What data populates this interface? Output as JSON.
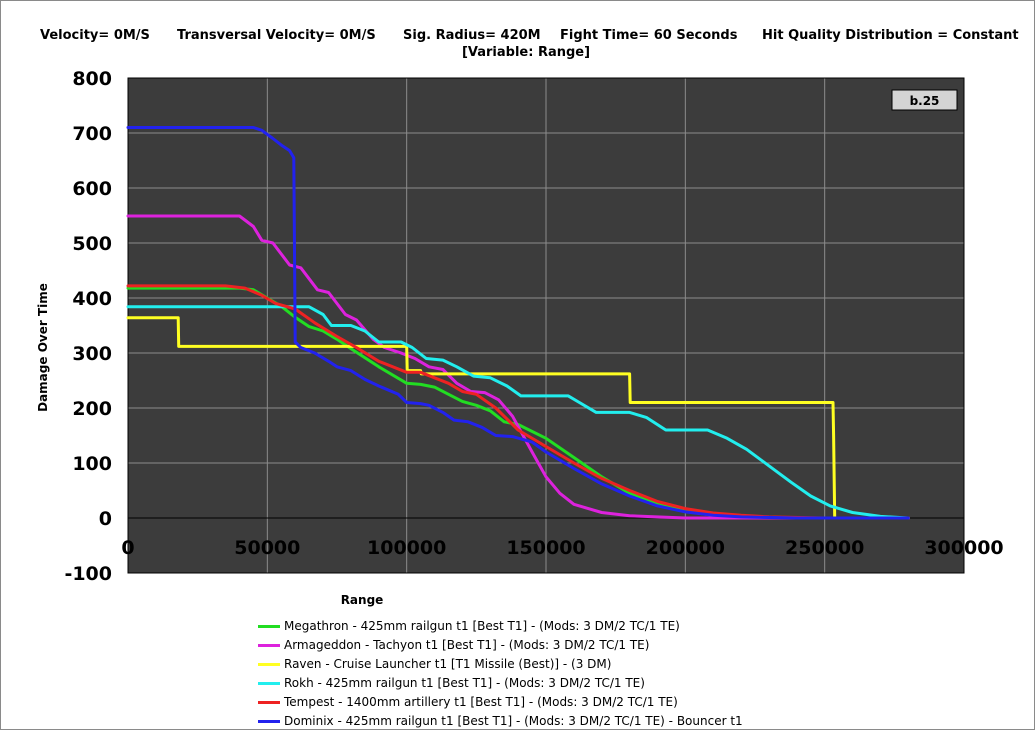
{
  "header": {
    "velocity": "Velocity= 0M/S",
    "transversal": "Transversal Velocity= 0M/S",
    "sig_radius": "Sig. Radius= 420M",
    "fight_time": "Fight Time= 60 Seconds",
    "hit_quality": "Hit Quality Distribution = Constant",
    "variable": "[Variable: Range]"
  },
  "version_badge": "b.25",
  "colors": {
    "plot_bg": "#3c3c3c",
    "grid": "#8c8c8c",
    "badge_bg": "#d4d4d4"
  },
  "chart_data": {
    "type": "line",
    "title": "",
    "xlabel": "Range",
    "ylabel": "Damage Over Time",
    "xlim": [
      0,
      300000
    ],
    "ylim": [
      -100,
      800
    ],
    "x_ticks": [
      "0",
      "50000",
      "100000",
      "150000",
      "200000",
      "250000",
      "300000"
    ],
    "x_tick_values": [
      0,
      50000,
      100000,
      150000,
      200000,
      250000,
      300000
    ],
    "y_ticks": [
      "800",
      "700",
      "600",
      "500",
      "400",
      "300",
      "200",
      "100",
      "0",
      "-100"
    ],
    "y_tick_values": [
      800,
      700,
      600,
      500,
      400,
      300,
      200,
      100,
      0,
      -100
    ],
    "grid": true,
    "legend_position": "bottom",
    "series": [
      {
        "name": "Megathron - 425mm railgun t1 [Best T1] - (Mods: 3 DM/2 TC/1 TE)",
        "color": "#22dd22",
        "points": [
          [
            0,
            418
          ],
          [
            40000,
            418
          ],
          [
            45000,
            415
          ],
          [
            50000,
            400
          ],
          [
            55000,
            385
          ],
          [
            60000,
            365
          ],
          [
            65000,
            348
          ],
          [
            70000,
            340
          ],
          [
            75000,
            325
          ],
          [
            80000,
            308
          ],
          [
            90000,
            275
          ],
          [
            100000,
            245
          ],
          [
            105000,
            243
          ],
          [
            110000,
            238
          ],
          [
            115000,
            225
          ],
          [
            120000,
            212
          ],
          [
            125000,
            205
          ],
          [
            130000,
            195
          ],
          [
            135000,
            175
          ],
          [
            140000,
            170
          ],
          [
            150000,
            145
          ],
          [
            160000,
            110
          ],
          [
            170000,
            75
          ],
          [
            180000,
            45
          ],
          [
            190000,
            25
          ],
          [
            200000,
            12
          ],
          [
            210000,
            5
          ],
          [
            220000,
            2
          ],
          [
            240000,
            0
          ],
          [
            280000,
            0
          ]
        ]
      },
      {
        "name": "Armageddon - Tachyon t1 [Best T1] - (Mods: 3 DM/2 TC/1 TE)",
        "color": "#dd22dd",
        "points": [
          [
            0,
            549
          ],
          [
            40000,
            549
          ],
          [
            45000,
            530
          ],
          [
            48000,
            505
          ],
          [
            52000,
            500
          ],
          [
            58000,
            460
          ],
          [
            62000,
            455
          ],
          [
            68000,
            415
          ],
          [
            72000,
            410
          ],
          [
            78000,
            370
          ],
          [
            82000,
            360
          ],
          [
            88000,
            325
          ],
          [
            92000,
            310
          ],
          [
            98000,
            300
          ],
          [
            103000,
            290
          ],
          [
            108000,
            275
          ],
          [
            113000,
            270
          ],
          [
            118000,
            245
          ],
          [
            123000,
            230
          ],
          [
            128000,
            228
          ],
          [
            133000,
            215
          ],
          [
            138000,
            185
          ],
          [
            145000,
            120
          ],
          [
            150000,
            75
          ],
          [
            155000,
            45
          ],
          [
            160000,
            25
          ],
          [
            170000,
            10
          ],
          [
            180000,
            4
          ],
          [
            200000,
            0
          ],
          [
            280000,
            0
          ]
        ]
      },
      {
        "name": "Raven - Cruise Launcher t1 [T1 Missile (Best)] - (3 DM)",
        "color": "#ffff22",
        "points": [
          [
            0,
            364
          ],
          [
            18000,
            364
          ],
          [
            18200,
            312
          ],
          [
            100000,
            312
          ],
          [
            100200,
            268
          ],
          [
            105000,
            268
          ],
          [
            105200,
            262
          ],
          [
            180000,
            262
          ],
          [
            180200,
            210
          ],
          [
            253000,
            210
          ],
          [
            253200,
            150
          ],
          [
            253600,
            0
          ]
        ]
      },
      {
        "name": "Rokh - 425mm railgun t1 [Best T1] - (Mods: 3 DM/2 TC/1 TE)",
        "color": "#22eeee",
        "points": [
          [
            0,
            384
          ],
          [
            65000,
            384
          ],
          [
            70000,
            370
          ],
          [
            73000,
            350
          ],
          [
            80000,
            350
          ],
          [
            85000,
            340
          ],
          [
            90000,
            320
          ],
          [
            98000,
            320
          ],
          [
            102000,
            310
          ],
          [
            107000,
            290
          ],
          [
            113000,
            287
          ],
          [
            118000,
            275
          ],
          [
            124000,
            258
          ],
          [
            130000,
            255
          ],
          [
            136000,
            240
          ],
          [
            141000,
            222
          ],
          [
            158000,
            222
          ],
          [
            162000,
            210
          ],
          [
            168000,
            192
          ],
          [
            180000,
            192
          ],
          [
            186000,
            183
          ],
          [
            193000,
            160
          ],
          [
            208000,
            160
          ],
          [
            215000,
            145
          ],
          [
            222000,
            125
          ],
          [
            230000,
            95
          ],
          [
            238000,
            65
          ],
          [
            245000,
            40
          ],
          [
            252000,
            22
          ],
          [
            260000,
            10
          ],
          [
            270000,
            3
          ],
          [
            280000,
            0
          ]
        ]
      },
      {
        "name": "Tempest - 1400mm artillery t1 [Best T1] - (Mods: 3 DM/2 TC/1 TE)",
        "color": "#ee2222",
        "points": [
          [
            0,
            422
          ],
          [
            35000,
            422
          ],
          [
            42000,
            418
          ],
          [
            48000,
            405
          ],
          [
            53000,
            390
          ],
          [
            60000,
            380
          ],
          [
            67000,
            355
          ],
          [
            75000,
            330
          ],
          [
            82000,
            310
          ],
          [
            90000,
            285
          ],
          [
            100000,
            265
          ],
          [
            105000,
            265
          ],
          [
            110000,
            255
          ],
          [
            115000,
            245
          ],
          [
            120000,
            230
          ],
          [
            125000,
            225
          ],
          [
            132000,
            200
          ],
          [
            140000,
            160
          ],
          [
            150000,
            130
          ],
          [
            160000,
            100
          ],
          [
            170000,
            72
          ],
          [
            180000,
            50
          ],
          [
            190000,
            30
          ],
          [
            200000,
            17
          ],
          [
            210000,
            9
          ],
          [
            220000,
            5
          ],
          [
            230000,
            2
          ],
          [
            250000,
            0
          ],
          [
            280000,
            0
          ]
        ]
      },
      {
        "name": "Dominix - 425mm railgun t1 [Best T1] - (Mods: 3 DM/2 TC/1 TE) - Bouncer t1",
        "color": "#2222ee",
        "points": [
          [
            0,
            710
          ],
          [
            45000,
            710
          ],
          [
            48000,
            705
          ],
          [
            52000,
            690
          ],
          [
            55000,
            678
          ],
          [
            58000,
            668
          ],
          [
            59500,
            655
          ],
          [
            60000,
            320
          ],
          [
            62000,
            310
          ],
          [
            67000,
            300
          ],
          [
            72000,
            285
          ],
          [
            75000,
            275
          ],
          [
            80000,
            268
          ],
          [
            85000,
            252
          ],
          [
            90000,
            240
          ],
          [
            97000,
            225
          ],
          [
            100000,
            210
          ],
          [
            105000,
            208
          ],
          [
            108000,
            205
          ],
          [
            113000,
            192
          ],
          [
            117000,
            178
          ],
          [
            122000,
            175
          ],
          [
            127000,
            165
          ],
          [
            132000,
            150
          ],
          [
            138000,
            148
          ],
          [
            145000,
            138
          ],
          [
            150000,
            120
          ],
          [
            160000,
            90
          ],
          [
            170000,
            62
          ],
          [
            180000,
            40
          ],
          [
            190000,
            22
          ],
          [
            200000,
            11
          ],
          [
            210000,
            5
          ],
          [
            220000,
            2
          ],
          [
            240000,
            0
          ],
          [
            280000,
            0
          ]
        ]
      }
    ]
  }
}
